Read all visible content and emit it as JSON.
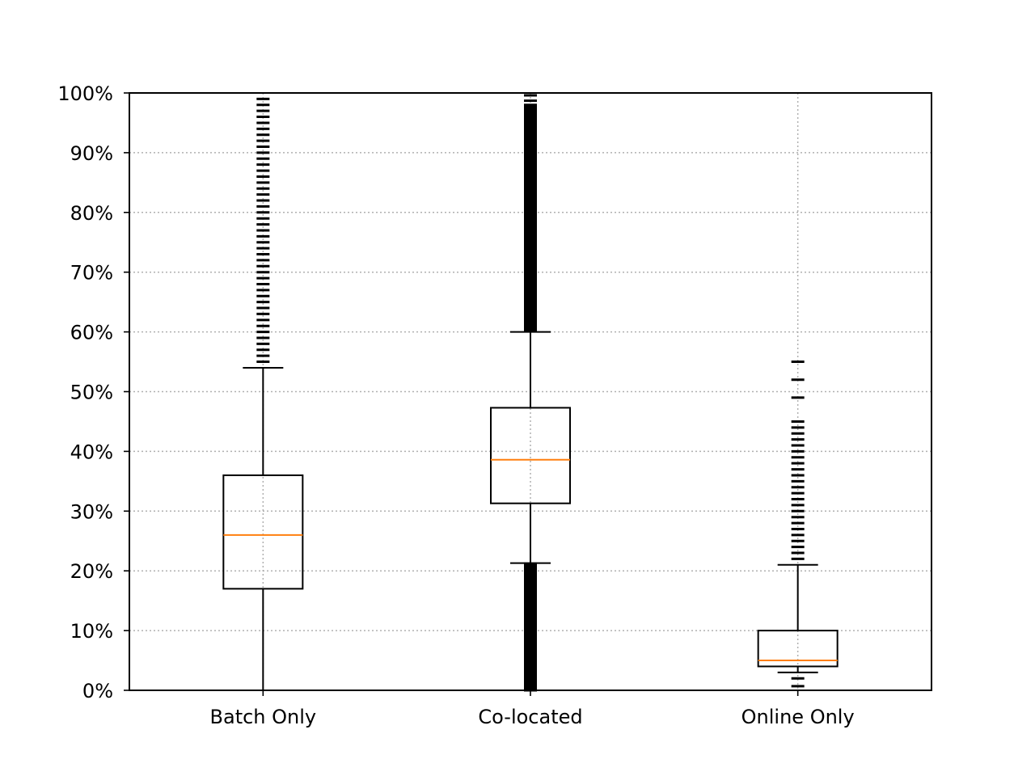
{
  "chart_data": {
    "type": "box",
    "title": "",
    "xlabel": "",
    "ylabel": "",
    "ylim": [
      0,
      100
    ],
    "y_ticks": [
      0,
      10,
      20,
      30,
      40,
      50,
      60,
      70,
      80,
      90,
      100
    ],
    "y_tick_labels": [
      "0%",
      "10%",
      "20%",
      "30%",
      "40%",
      "50%",
      "60%",
      "70%",
      "80%",
      "90%",
      "100%"
    ],
    "grid": true,
    "colors": {
      "box": "#000000",
      "median": "#ff7f0e",
      "grid": "#b0b0b0"
    },
    "categories": [
      "Batch Only",
      "Co-located",
      "Online Only"
    ],
    "boxes": [
      {
        "category": "Batch Only",
        "whisker_low": 0,
        "q1": 17,
        "median": 26,
        "q3": 36,
        "whisker_high": 54,
        "outliers_low": [],
        "outliers_high": [
          55,
          56,
          57,
          58,
          59,
          60,
          61,
          62,
          63,
          64,
          65,
          66,
          67,
          68,
          69,
          70,
          71,
          72,
          73,
          74,
          75,
          76,
          77,
          78,
          79,
          80,
          81,
          82,
          83,
          84,
          85,
          86,
          87,
          88,
          89,
          90,
          91,
          92,
          93,
          94,
          95,
          96,
          97,
          98,
          99
        ]
      },
      {
        "category": "Co-located",
        "whisker_low": 21.3,
        "q1": 31.3,
        "median": 38.6,
        "q3": 47.3,
        "whisker_high": 60,
        "outliers_low_range": [
          0,
          21.2
        ],
        "outliers_high_range": [
          60.1,
          98
        ],
        "outliers_high_extra": [
          98.7,
          99.6
        ]
      },
      {
        "category": "Online Only",
        "whisker_low": 3,
        "q1": 4,
        "median": 5,
        "q3": 10,
        "whisker_high": 21,
        "outliers_low": [
          0.7,
          2
        ],
        "outliers_high": [
          22,
          23,
          24,
          25,
          26,
          27,
          28,
          29,
          30,
          31,
          32,
          33,
          34,
          35,
          36,
          37,
          38,
          39,
          40,
          41,
          42,
          43,
          44,
          45,
          49,
          52,
          55
        ]
      }
    ]
  }
}
